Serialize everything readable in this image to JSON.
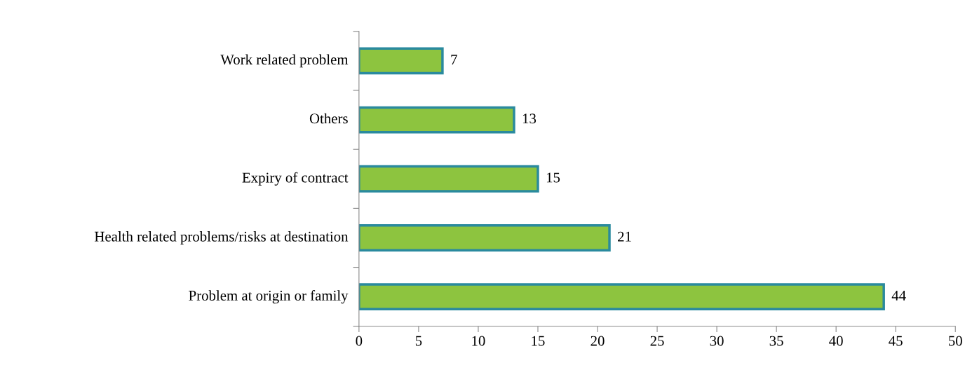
{
  "chart_data": {
    "type": "bar",
    "orientation": "horizontal",
    "categories": [
      "Work related problem",
      "Others",
      "Expiry of contract",
      "Health related problems/risks at destination",
      "Problem at origin or family"
    ],
    "values": [
      7,
      13,
      15,
      21,
      44
    ],
    "color": "#8dc43f",
    "xlim": [
      0,
      50
    ],
    "xticks": [
      0,
      5,
      10,
      15,
      20,
      25,
      30,
      35,
      40,
      45,
      50
    ],
    "data_labels": true,
    "grid": false,
    "legend": false
  }
}
